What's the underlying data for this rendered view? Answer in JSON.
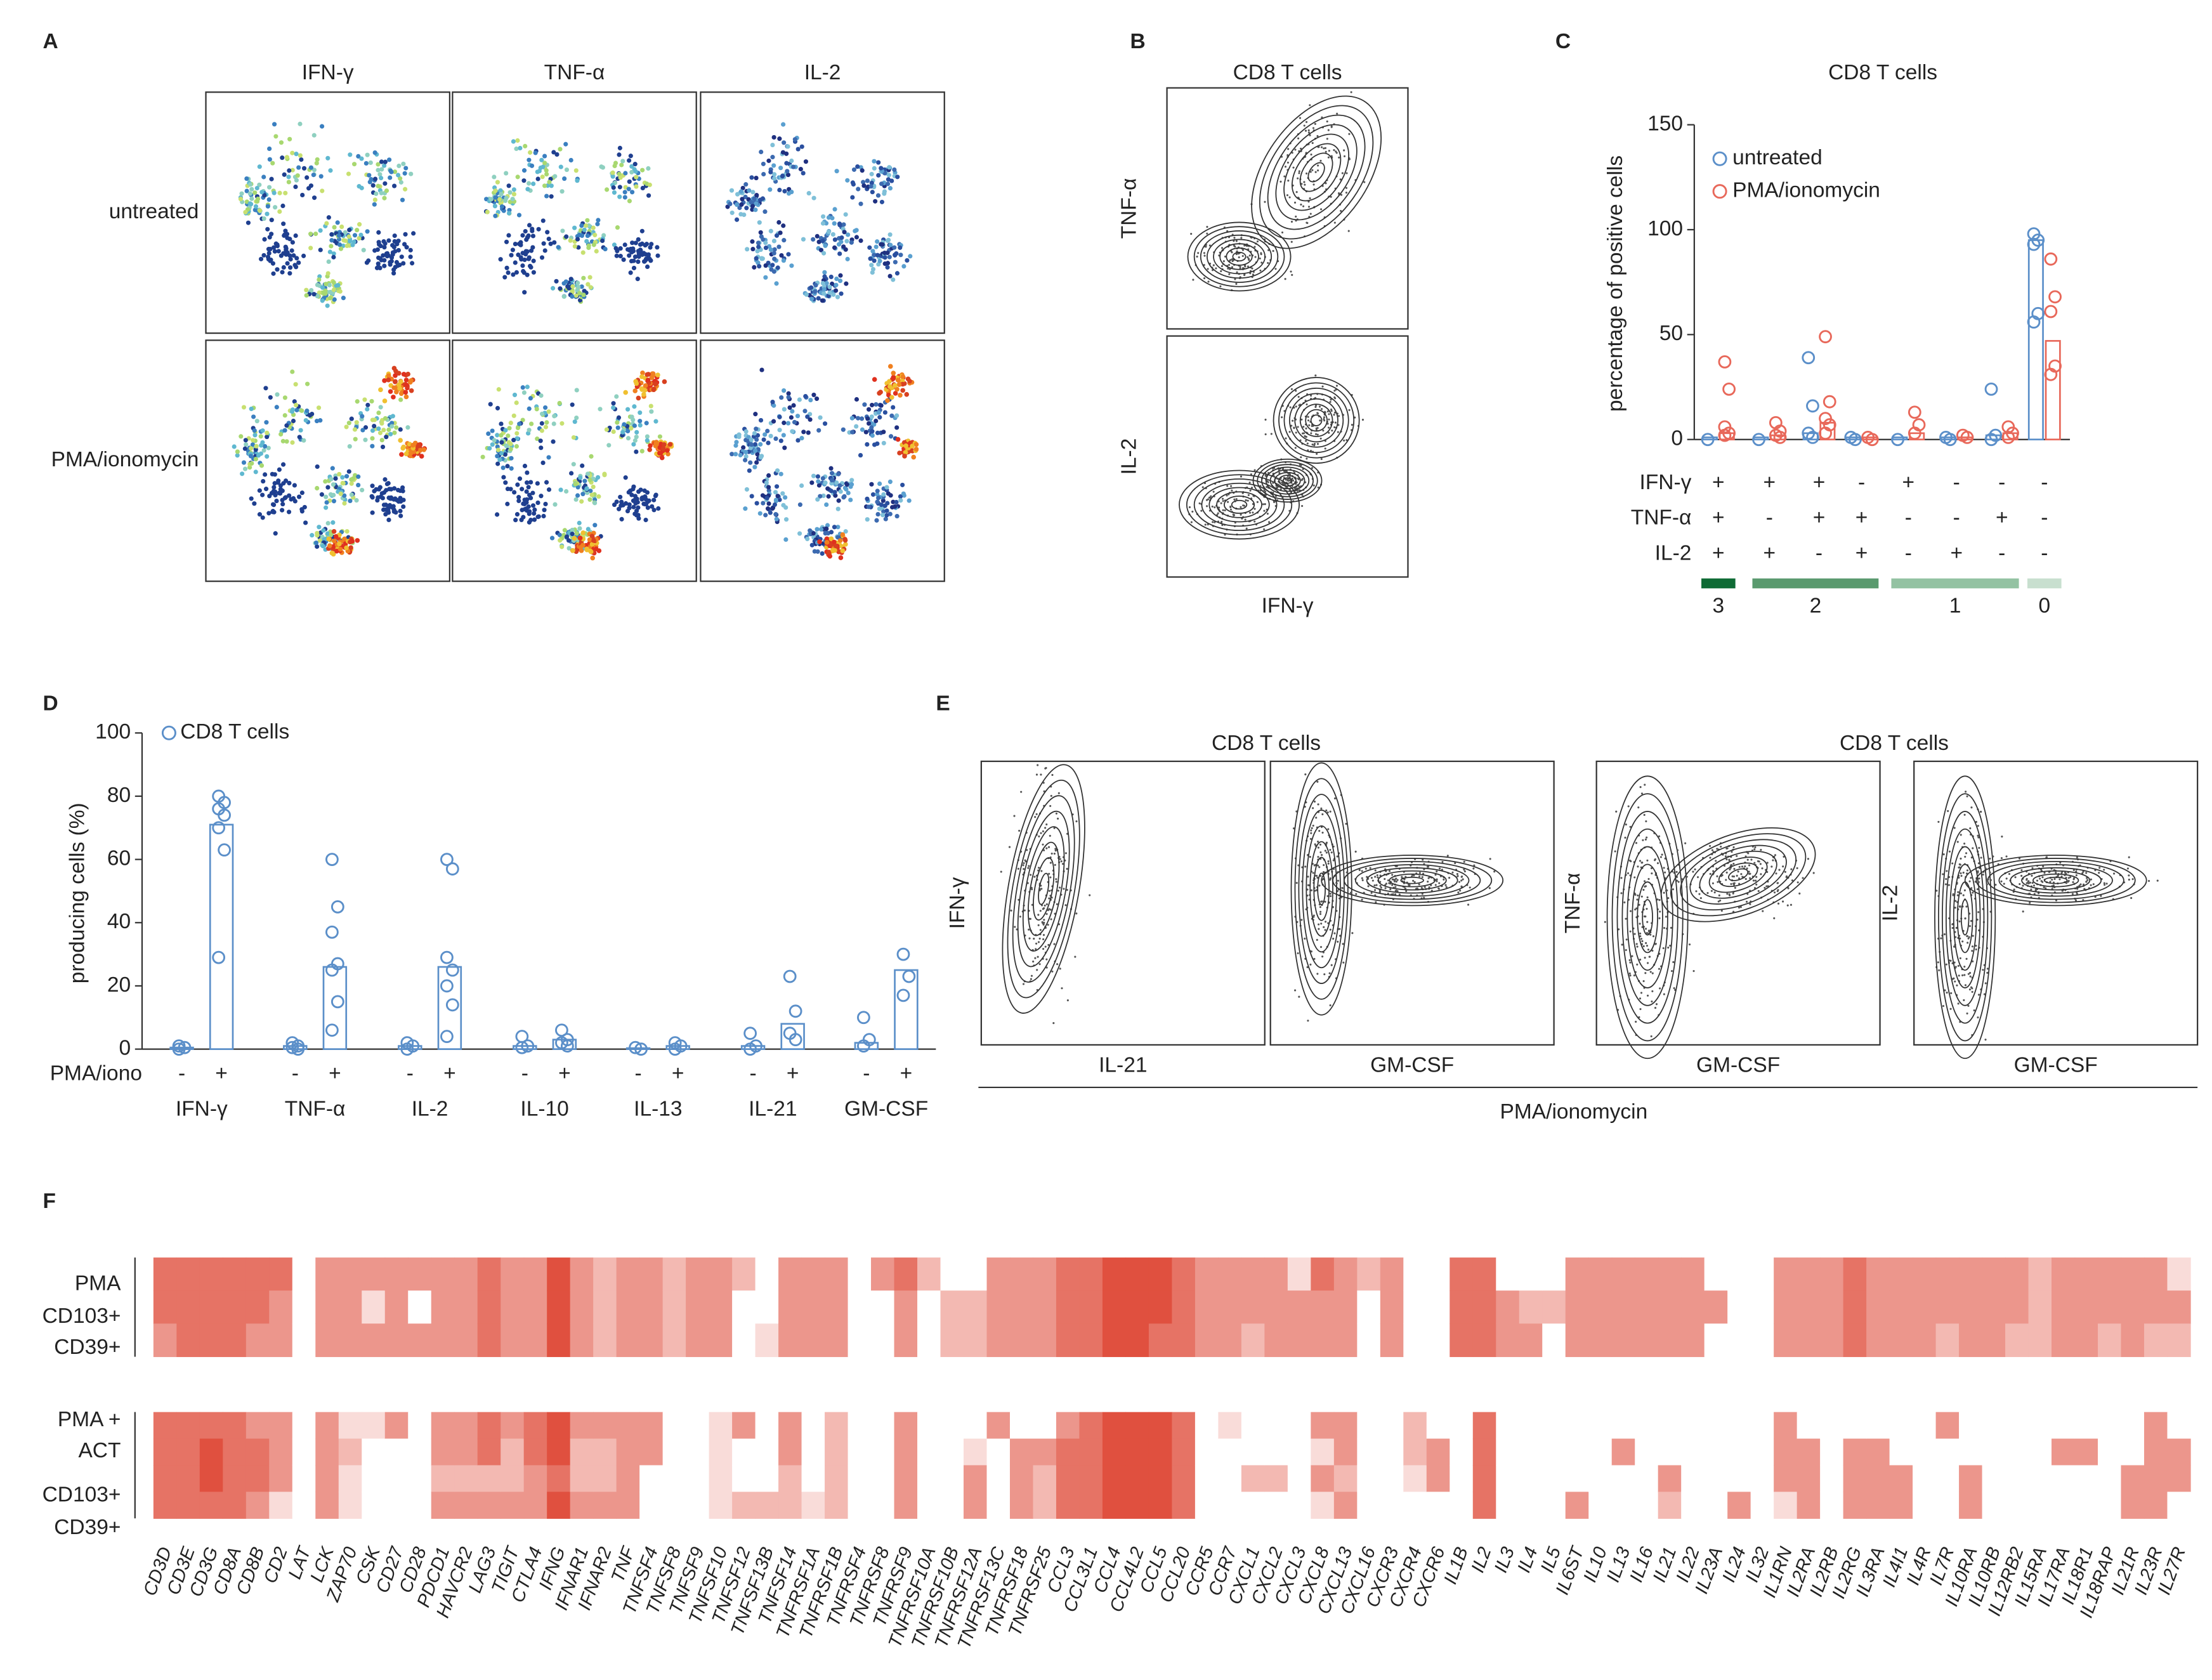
{
  "panel_labels": [
    "A",
    "B",
    "C",
    "D",
    "E",
    "F"
  ],
  "panel_a": {
    "columns": [
      "IFN-γ",
      "TNF-α",
      "IL-2"
    ],
    "rows": [
      "untreated",
      "PMA/ionomycin"
    ]
  },
  "panel_b": {
    "title": "CD8 T cells",
    "y_labels": [
      "TNF-α",
      "IL-2"
    ],
    "x_label": "IFN-γ"
  },
  "chart_data": [
    {
      "type": "combination_dot_bar",
      "title": "CD8 T cells",
      "y_label": "percentage of positive cells",
      "ylim": [
        0,
        150
      ],
      "yticks": [
        0,
        50,
        100,
        150
      ],
      "legend": "top-left",
      "series": [
        {
          "name": "untreated",
          "color": "#5b8fc9",
          "values": [
            1,
            1,
            3,
            1,
            1,
            1,
            2,
            95
          ],
          "points": [
            [
              0
            ],
            [
              0
            ],
            [
              39,
              16,
              3,
              1
            ],
            [
              1,
              0
            ],
            [
              0
            ],
            [
              1,
              0
            ],
            [
              24,
              2,
              0
            ],
            [
              98,
              95,
              93,
              60,
              56
            ]
          ]
        },
        {
          "name": "PMA/ionomycin",
          "color": "#e8685a",
          "values": [
            3,
            2,
            8,
            1,
            3,
            1,
            3,
            47
          ],
          "points": [
            [
              37,
              24,
              6,
              3,
              2
            ],
            [
              8,
              4,
              2,
              1
            ],
            [
              49,
              18,
              10,
              7,
              3
            ],
            [
              1,
              0
            ],
            [
              13,
              7,
              3
            ],
            [
              2,
              1
            ],
            [
              6,
              3,
              1
            ],
            [
              86,
              68,
              61,
              35,
              31
            ]
          ]
        }
      ],
      "combination_rows": [
        {
          "label": "IFN-γ",
          "signs": [
            "+",
            "+",
            "+",
            "-",
            "+",
            "-",
            "-",
            "-"
          ]
        },
        {
          "label": "TNF-α",
          "signs": [
            "+",
            "-",
            "+",
            "+",
            "-",
            "-",
            "+",
            "-"
          ]
        },
        {
          "label": "IL-2",
          "signs": [
            "+",
            "+",
            "-",
            "+",
            "-",
            "+",
            "-",
            "-"
          ]
        }
      ],
      "groups": [
        {
          "label": "3",
          "columns": [
            0,
            0
          ],
          "color": "#0f6b35"
        },
        {
          "label": "2",
          "columns": [
            1,
            3
          ],
          "color": "#5a9a6e"
        },
        {
          "label": "1",
          "columns": [
            4,
            6
          ],
          "color": "#93c2a2"
        },
        {
          "label": "0",
          "columns": [
            7,
            7
          ],
          "color": "#c8dfcf"
        }
      ]
    },
    {
      "type": "condition_dot_bar",
      "y_label": "producing cells (%)",
      "ylim": [
        0,
        100
      ],
      "yticks": [
        0,
        20,
        40,
        60,
        80,
        100
      ],
      "legend": "top-left",
      "categories": [
        "IFN-γ",
        "TNF-α",
        "IL-2",
        "IL-10",
        "IL-13",
        "IL-21",
        "GM-CSF"
      ],
      "conditions": [
        "-",
        "+"
      ],
      "condition_label": "PMA/iono",
      "series": [
        {
          "name": "CD8 T cells",
          "color": "#5b8fc9",
          "values": [
            [
              0.5,
              71
            ],
            [
              1,
              26
            ],
            [
              1,
              26
            ],
            [
              1,
              3
            ],
            [
              0.3,
              1
            ],
            [
              1,
              8
            ],
            [
              2,
              25
            ]
          ],
          "points": [
            [
              [
                1,
                0.5,
                0
              ],
              [
                80,
                78,
                76,
                74,
                70,
                63,
                29
              ]
            ],
            [
              [
                2,
                1,
                0.5,
                0
              ],
              [
                60,
                45,
                37,
                27,
                25,
                15,
                6
              ]
            ],
            [
              [
                2,
                1,
                0
              ],
              [
                60,
                57,
                29,
                25,
                20,
                14,
                4
              ]
            ],
            [
              [
                4,
                1,
                0.5
              ],
              [
                6,
                3,
                2,
                1
              ]
            ],
            [
              [
                0.5,
                0
              ],
              [
                2,
                1,
                0
              ]
            ],
            [
              [
                5,
                1,
                0
              ],
              [
                23,
                12,
                5,
                3
              ]
            ],
            [
              [
                10,
                3,
                1
              ],
              [
                30,
                23,
                17
              ]
            ]
          ]
        }
      ]
    }
  ],
  "panel_e": {
    "titles": [
      "CD8 T cells",
      "CD8 T cells"
    ],
    "plots": [
      {
        "y_label": "IFN-γ",
        "x_label": "IL-21"
      },
      {
        "x_label": "GM-CSF"
      },
      {
        "y_label": "TNF-α",
        "x_label": "GM-CSF"
      },
      {
        "y_label": "IL-2",
        "x_label": "GM-CSF"
      }
    ],
    "footer": "PMA/ionomycin"
  },
  "heatmap": {
    "color": "#e0503f",
    "max_level": 5,
    "row_labels_top": [
      "PMA",
      "CD103+",
      "CD39+"
    ],
    "row_labels_bottom": [
      "PMA +",
      "ACT",
      "CD103+",
      "CD39+"
    ],
    "genes": [
      "CD3D",
      "CD3E",
      "CD3G",
      "CD8A",
      "CD8B",
      "CD2",
      "LAT",
      "LCK",
      "ZAP70",
      "CSK",
      "CD27",
      "CD28",
      "PDCD1",
      "HAVCR2",
      "LAG3",
      "TIGIT",
      "CTLA4",
      "IFNG",
      "IFNAR1",
      "IFNAR2",
      "TNF",
      "TNFSF4",
      "TNFSF8",
      "TNFSF9",
      "TNFSF10",
      "TNFSF12",
      "TNFSF13B",
      "TNFSF14",
      "TNFRSF1A",
      "TNFRSF1B",
      "TNFRSF4",
      "TNFRSF8",
      "TNFRSF9",
      "TNFRSF10A",
      "TNFRSF10B",
      "TNFRSF12A",
      "TNFRSF13C",
      "TNFRSF18",
      "TNFRSF25",
      "CCL3",
      "CCL3L1",
      "CCL4",
      "CCL4L2",
      "CCL5",
      "CCL20",
      "CCR5",
      "CCR7",
      "CXCL1",
      "CXCL2",
      "CXCL3",
      "CXCL8",
      "CXCL13",
      "CXCL16",
      "CXCR3",
      "CXCR4",
      "CXCR6",
      "IL1B",
      "IL2",
      "IL3",
      "IL4",
      "IL5",
      "IL6ST",
      "IL10",
      "IL13",
      "IL16",
      "IL21",
      "IL22",
      "IL23A",
      "IL24",
      "IL32",
      "IL1RN",
      "IL2RA",
      "IL2RB",
      "IL2RG",
      "IL3RA",
      "IL4I1",
      "IL4R",
      "IL7R",
      "IL10RA",
      "IL10RB",
      "IL12RB2",
      "IL15RA",
      "IL17RA",
      "IL18R1",
      "IL18RAP",
      "IL21R",
      "IL23R",
      "IL27R"
    ],
    "values": [
      [
        4,
        4,
        3,
        4,
        4,
        4,
        4
      ],
      [
        4,
        4,
        4,
        4,
        4,
        4,
        4
      ],
      [
        4,
        4,
        4,
        4,
        5,
        5,
        4
      ],
      [
        4,
        4,
        4,
        4,
        4,
        4,
        4
      ],
      [
        4,
        4,
        3,
        3,
        4,
        4,
        3
      ],
      [
        4,
        3,
        3,
        3,
        3,
        3,
        1
      ],
      [
        0,
        0,
        0,
        0,
        0,
        0,
        0
      ],
      [
        3,
        3,
        3,
        3,
        3,
        3,
        3
      ],
      [
        3,
        3,
        3,
        1,
        2,
        1,
        1
      ],
      [
        3,
        1,
        3,
        1,
        0,
        0,
        0
      ],
      [
        3,
        3,
        3,
        3,
        0,
        0,
        0
      ],
      [
        3,
        0,
        3,
        0,
        0,
        0,
        0
      ],
      [
        3,
        3,
        3,
        3,
        3,
        2,
        3
      ],
      [
        3,
        3,
        3,
        3,
        3,
        2,
        3
      ],
      [
        4,
        4,
        4,
        4,
        4,
        2,
        3
      ],
      [
        3,
        3,
        3,
        3,
        2,
        2,
        3
      ],
      [
        3,
        3,
        3,
        4,
        4,
        3,
        3
      ],
      [
        5,
        5,
        5,
        5,
        5,
        4,
        5
      ],
      [
        3,
        3,
        3,
        3,
        2,
        2,
        3
      ],
      [
        2,
        2,
        2,
        3,
        2,
        2,
        3
      ],
      [
        3,
        3,
        3,
        3,
        3,
        3,
        3
      ],
      [
        3,
        3,
        3,
        3,
        3,
        0,
        0
      ],
      [
        2,
        2,
        2,
        0,
        0,
        0,
        0
      ],
      [
        3,
        3,
        3,
        0,
        0,
        0,
        0
      ],
      [
        3,
        3,
        3,
        1,
        1,
        1,
        1
      ],
      [
        2,
        0,
        0,
        3,
        0,
        0,
        2
      ],
      [
        0,
        0,
        1,
        0,
        0,
        0,
        2
      ],
      [
        3,
        3,
        3,
        3,
        3,
        2,
        2
      ],
      [
        3,
        3,
        3,
        0,
        0,
        0,
        1
      ],
      [
        3,
        3,
        3,
        2,
        2,
        2,
        2
      ],
      [
        0,
        0,
        0,
        0,
        0,
        0,
        0
      ],
      [
        3,
        0,
        0,
        0,
        0,
        0,
        0
      ],
      [
        4,
        3,
        3,
        3,
        3,
        3,
        3
      ],
      [
        2,
        0,
        0,
        0,
        0,
        0,
        0
      ],
      [
        0,
        2,
        2,
        0,
        0,
        0,
        0
      ],
      [
        0,
        2,
        2,
        0,
        1,
        3,
        3
      ],
      [
        3,
        3,
        3,
        3,
        0,
        0,
        0
      ],
      [
        3,
        3,
        3,
        0,
        3,
        3,
        3
      ],
      [
        3,
        3,
        3,
        0,
        3,
        2,
        2
      ],
      [
        4,
        4,
        4,
        3,
        4,
        4,
        4
      ],
      [
        4,
        4,
        4,
        4,
        4,
        4,
        4
      ],
      [
        5,
        5,
        5,
        5,
        5,
        5,
        5
      ],
      [
        5,
        5,
        5,
        5,
        5,
        5,
        5
      ],
      [
        5,
        5,
        4,
        5,
        5,
        5,
        5
      ],
      [
        4,
        4,
        4,
        4,
        4,
        4,
        4
      ],
      [
        3,
        3,
        3,
        0,
        0,
        0,
        0
      ],
      [
        3,
        3,
        3,
        1,
        0,
        0,
        0
      ],
      [
        3,
        3,
        2,
        0,
        0,
        2,
        0
      ],
      [
        3,
        3,
        3,
        0,
        0,
        2,
        0
      ],
      [
        1,
        3,
        3,
        0,
        0,
        0,
        0
      ],
      [
        4,
        3,
        3,
        3,
        1,
        3,
        1
      ],
      [
        3,
        3,
        3,
        3,
        3,
        2,
        3
      ],
      [
        2,
        0,
        0,
        0,
        0,
        0,
        0
      ],
      [
        3,
        3,
        3,
        0,
        0,
        0,
        0
      ],
      [
        0,
        0,
        0,
        2,
        2,
        1,
        0
      ],
      [
        0,
        0,
        0,
        0,
        3,
        3,
        0
      ],
      [
        4,
        4,
        4,
        0,
        0,
        0,
        0
      ],
      [
        4,
        4,
        4,
        4,
        4,
        4,
        4
      ],
      [
        0,
        3,
        3,
        0,
        0,
        0,
        0
      ],
      [
        0,
        2,
        3,
        0,
        0,
        0,
        0
      ],
      [
        0,
        2,
        0,
        0,
        0,
        0,
        0
      ],
      [
        3,
        3,
        3,
        0,
        0,
        0,
        3
      ],
      [
        3,
        3,
        3,
        0,
        0,
        0,
        0
      ],
      [
        3,
        3,
        3,
        0,
        3,
        0,
        0
      ],
      [
        3,
        3,
        3,
        0,
        0,
        0,
        0
      ],
      [
        3,
        3,
        3,
        0,
        0,
        3,
        2
      ],
      [
        3,
        3,
        3,
        0,
        0,
        0,
        0
      ],
      [
        0,
        3,
        0,
        0,
        0,
        0,
        0
      ],
      [
        0,
        0,
        0,
        0,
        0,
        0,
        3
      ],
      [
        0,
        0,
        0,
        0,
        0,
        0,
        0
      ],
      [
        3,
        3,
        3,
        3,
        3,
        3,
        1
      ],
      [
        3,
        3,
        3,
        0,
        3,
        3,
        3
      ],
      [
        3,
        3,
        3,
        0,
        0,
        0,
        0
      ],
      [
        4,
        4,
        4,
        0,
        3,
        3,
        3
      ],
      [
        3,
        3,
        3,
        0,
        3,
        3,
        3
      ],
      [
        3,
        3,
        3,
        0,
        0,
        3,
        3
      ],
      [
        3,
        3,
        3,
        0,
        0,
        0,
        0
      ],
      [
        3,
        3,
        2,
        3,
        0,
        0,
        0
      ],
      [
        3,
        3,
        3,
        0,
        0,
        3,
        3
      ],
      [
        3,
        3,
        3,
        0,
        0,
        0,
        0
      ],
      [
        3,
        3,
        2,
        0,
        0,
        0,
        0
      ],
      [
        2,
        2,
        2,
        0,
        0,
        0,
        0
      ],
      [
        3,
        3,
        3,
        0,
        3,
        0,
        0
      ],
      [
        3,
        3,
        3,
        0,
        3,
        0,
        0
      ],
      [
        3,
        3,
        2,
        0,
        0,
        0,
        0
      ],
      [
        3,
        3,
        3,
        0,
        0,
        3,
        3
      ],
      [
        3,
        3,
        2,
        3,
        3,
        3,
        3
      ],
      [
        1,
        3,
        2,
        0,
        3,
        3,
        0
      ]
    ]
  }
}
